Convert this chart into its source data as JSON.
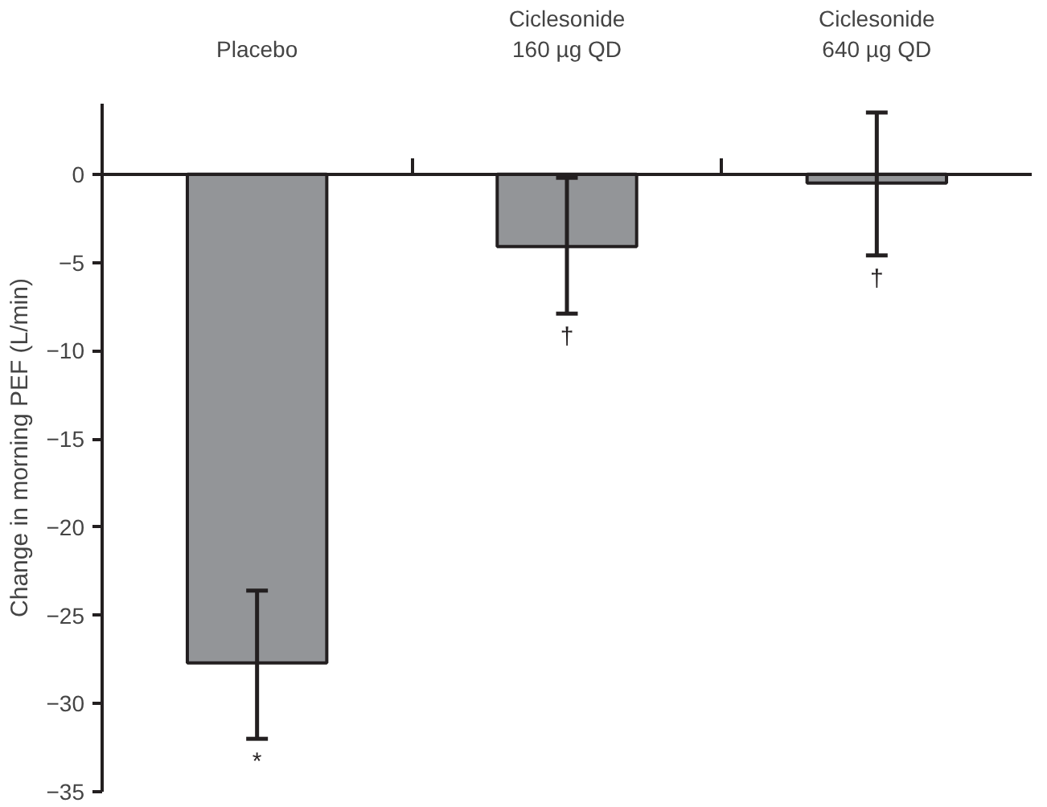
{
  "chart_data": {
    "type": "bar",
    "ylabel": "Change in morning PEF (L/min)",
    "categories": [
      "Placebo",
      "Ciclesonide\n160 µg QD",
      "Ciclesonide\n640 µg QD"
    ],
    "values": [
      -27.7,
      -4.1,
      -0.5
    ],
    "color": "#939598",
    "errors": [
      [
        -32.0,
        -23.6
      ],
      [
        -7.9,
        -0.2
      ],
      [
        -4.6,
        3.5
      ]
    ],
    "ylim": [
      -35,
      4
    ],
    "yticks": [
      0,
      -5,
      -10,
      -15,
      -20,
      -25,
      -30,
      -35
    ],
    "annotations": [
      "*",
      "†",
      "†"
    ]
  }
}
